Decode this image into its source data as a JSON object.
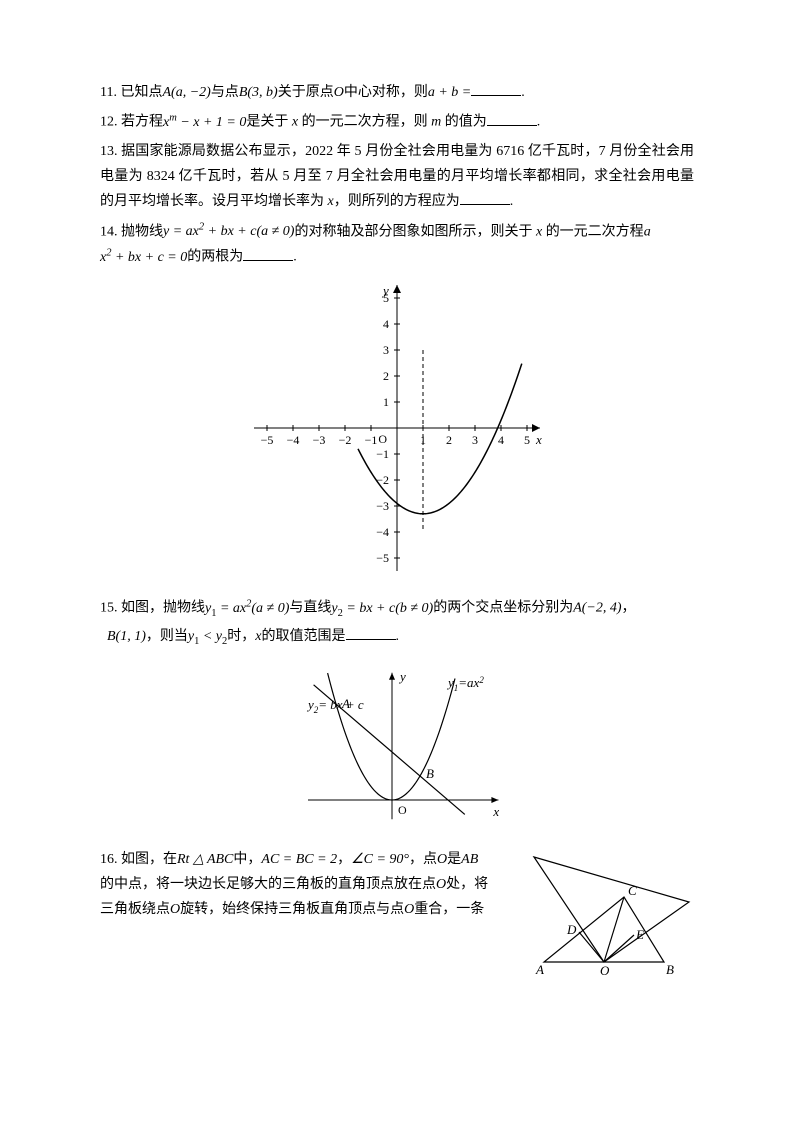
{
  "q11": {
    "num": "11.",
    "text_a": "已知点",
    "expr_a": "A(a, −2)",
    "text_b": "与点",
    "expr_b": "B(3, b)",
    "text_c": "关于原点",
    "expr_c": "O",
    "text_d": "中心对称，则",
    "expr_d": "a + b =",
    "text_e": "."
  },
  "q12": {
    "num": "12.",
    "text_a": "若方程",
    "expr_a": "x",
    "expr_sup": "m",
    "expr_b": " − x + 1 = 0",
    "text_b": "是关于",
    "expr_c": "x",
    "text_c": "的一元二次方程，则",
    "expr_d": "m",
    "text_d": "的值为",
    "text_e": "."
  },
  "q13": {
    "num": "13.",
    "line": "据国家能源局数据公布显示，2022 年 5 月份全社会用电量为 6716 亿千瓦时，7 月份全社会用电量为 8324 亿千瓦时，若从 5 月至 7 月全社会用电量的月平均增长率都相同，求全社会用电量的月平均增长率。设月平均增长率为 ",
    "expr_a": "x",
    "text_b": "，则所列的方程应为",
    "text_e": "."
  },
  "q14": {
    "num": "14.",
    "text_a": "抛物线",
    "expr_a": "y = ax",
    "expr_sup": "2",
    "expr_b": " + bx + c(a ≠ 0)",
    "text_b": "的对称轴及部分图象如图所示，则关于",
    "expr_c": "x",
    "text_c": "的一元二次方程",
    "expr_d": "a",
    "line2_a": "x",
    "line2_sup": "2",
    "line2_b": " + bx + c = 0",
    "line2_text": "的两根为",
    "text_e": ".",
    "chart": {
      "type": "line",
      "xlim": [
        -5.5,
        5.5
      ],
      "ylim": [
        -5.5,
        5.5
      ],
      "xticks": [
        -5,
        -4,
        -3,
        -2,
        -1,
        1,
        2,
        3,
        4,
        5
      ],
      "yticks": [
        -5,
        -4,
        -3,
        -2,
        -1,
        1,
        2,
        3,
        4,
        5
      ],
      "axis_of_symmetry": 1,
      "parabola_a": 0.4,
      "parabola_h": 1,
      "parabola_k": -3.3,
      "x_range_start": -1.5,
      "x_range_end": 4.8,
      "stroke": "#000000",
      "stroke_width": 1.5,
      "dash": "4 3"
    }
  },
  "q15": {
    "num": "15.",
    "text_a": "如图，抛物线",
    "expr_a": "y",
    "sub_a": "1",
    "expr_b": " = ax",
    "sup_b": "2",
    "expr_c": "(a ≠ 0)",
    "text_b": "与直线",
    "expr_d": "y",
    "sub_d": "2",
    "expr_e": " = bx + c(b ≠ 0)",
    "text_c": "的两个交点坐标分别为",
    "expr_f": "A(−2, 4)",
    "text_d": "，",
    "line2_a": "B(1, 1)",
    "line2_text_a": "，则当",
    "line2_b": "y",
    "line2_sub_b": "1",
    "line2_c": " < y",
    "line2_sub_c": "2",
    "line2_text_b": "时，",
    "line2_d": "x",
    "line2_text_c": "的取值范围是",
    "text_e": ".",
    "chart": {
      "type": "line-scatter",
      "label_parabola": "y",
      "label_parabola_sub": "1",
      "label_parabola_eq": "=ax",
      "label_parabola_sup": "2",
      "label_line": "y",
      "label_line_sub": "2",
      "label_line_eq": "= bx + c",
      "point_A": "A",
      "point_B": "B",
      "origin": "O",
      "xlabel": "x",
      "ylabel": "y",
      "stroke": "#000000",
      "stroke_width": 1.2
    }
  },
  "q16": {
    "num": "16.",
    "text_a": "如图，在",
    "expr_a": "Rt △ ABC",
    "text_b": "中，",
    "expr_b": "AC = BC = 2",
    "text_c": "，",
    "expr_c": "∠C = 90°",
    "text_d": "，点",
    "expr_d": "O",
    "text_e": "是",
    "expr_e": "AB",
    "line2": "的中点，将一块边长足够大的三角板的直角顶点放在点",
    "expr_f": "O",
    "line2_b": "处，将",
    "line3": "三角板绕点",
    "expr_g": "O",
    "line3_b": "旋转，始终保持三角板直角顶点与点",
    "expr_h": "O",
    "line3_c": "重合，一条",
    "chart": {
      "type": "diagram",
      "labels": {
        "A": "A",
        "B": "B",
        "C": "C",
        "D": "D",
        "E": "E",
        "O": "O"
      },
      "stroke": "#000000",
      "stroke_width": 1.2
    }
  }
}
